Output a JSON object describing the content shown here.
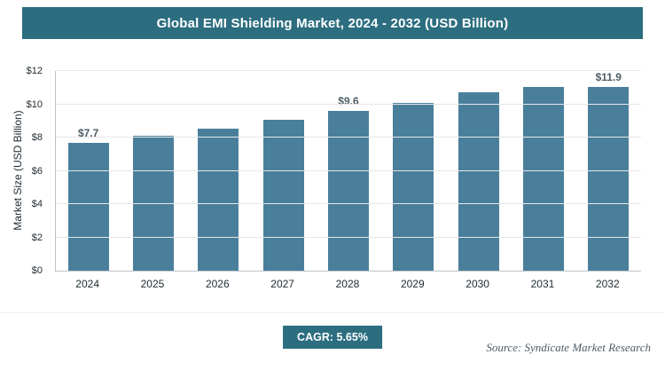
{
  "chart_data": {
    "type": "bar",
    "title": "Global EMI Shielding Market, 2024 - 2032 (USD Billion)",
    "categories": [
      "2024",
      "2025",
      "2026",
      "2027",
      "2028",
      "2029",
      "2030",
      "2031",
      "2032"
    ],
    "values": [
      7.7,
      8.1,
      8.55,
      9.05,
      9.6,
      10.1,
      10.7,
      11.3,
      11.9
    ],
    "value_labels": [
      "$7.7",
      "",
      "",
      "",
      "$9.6",
      "",
      "",
      "",
      "$11.9"
    ],
    "xlabel": "",
    "ylabel": "Market Size (USD Billion)",
    "ylim": [
      0,
      12
    ],
    "ytick_step": 2,
    "ytick_labels": [
      "$0",
      "$2",
      "$4",
      "$6",
      "$8",
      "$10",
      "$12"
    ],
    "grid": true,
    "legend": "none",
    "bar_color": "#4a7f9b"
  },
  "footer": {
    "cagr_label": "CAGR: 5.65%",
    "source": "Source: Syndicate Market Research"
  },
  "colors": {
    "header_bg": "#2c6e80",
    "badge_bg": "#2c6e80",
    "bar": "#4a7f9b"
  }
}
